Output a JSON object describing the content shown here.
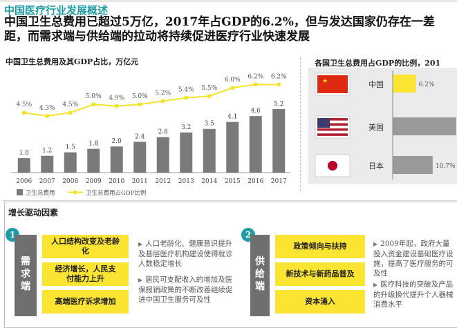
{
  "header": {
    "section_title": "中国医疗行业发展概述",
    "headline": "中国卫生总费用已超过5万亿，2017年占GDP的6.2%，但与发达国家仍存在一差距，而需求端与供给端的拉动将持续促进医疗行业快速发展"
  },
  "chart_data": {
    "type": "bar",
    "title": "中国卫生总费用及其GDP占比，万亿元",
    "categories": [
      "2006",
      "2007",
      "2008",
      "2009",
      "2010",
      "2011",
      "2012",
      "2013",
      "2014",
      "2015",
      "2016",
      "2017"
    ],
    "series": [
      {
        "name": "卫生总费用",
        "kind": "bar",
        "color": "#7a7a7a",
        "values": [
          1.0,
          1.2,
          1.5,
          1.8,
          2.0,
          2.4,
          2.8,
          3.2,
          3.5,
          4.1,
          4.6,
          5.2
        ]
      },
      {
        "name": "卫生总费用占GDP比例",
        "kind": "line",
        "color": "#f5e32a",
        "values": [
          4.5,
          4.3,
          4.5,
          5.0,
          4.9,
          5.0,
          5.2,
          5.4,
          5.5,
          6.0,
          6.2,
          6.2
        ],
        "labels": [
          "4.5%",
          "4.3%",
          "4.5%",
          "5.0%",
          "4.9%",
          "5.0%",
          "5.2%",
          "5.4%",
          "5.5%",
          "6.0%",
          "6.2%",
          "6.2%"
        ]
      }
    ],
    "ylim": [
      0,
      6
    ]
  },
  "comparison": {
    "title": "各国卫生总费用占GDP的比例，201",
    "countries": [
      {
        "name": "中国",
        "flag": "china-flag",
        "value": 6.2,
        "label": "6.2%",
        "color": "#fbe432"
      },
      {
        "name": "美国",
        "flag": "usa-flag",
        "value": 17.0,
        "label": "",
        "color": "#9a9a9a"
      },
      {
        "name": "日本",
        "flag": "japan-flag",
        "value": 10.7,
        "label": "10.7%",
        "color": "#9a9a9a"
      }
    ],
    "max": 17.2
  },
  "drivers": {
    "title": "增长驱动因素",
    "demand": {
      "number": "1",
      "label": "需求端",
      "items": [
        "人口结构改变及老龄化",
        "经济增长，人民支付能力上升",
        "高端医疗诉求增加"
      ],
      "descs": [
        "人口老龄化、健康意识提升及基层医疗机构建设使得就诊人数稳定增长",
        "居民可支配收入的增加及医保报销政策的不断改善继续促进中国卫生服务可及性"
      ]
    },
    "supply": {
      "number": "2",
      "label": "供给端",
      "items": [
        "政策倾向与扶持",
        "新技术与新药品普及",
        "资本涌入"
      ],
      "descs": [
        "2009年起，政府大量投入资金建设基础医疗设施，提高了医疗服务的可及性",
        "医疗科技的突破及产品的升级换代提升个人器械消费水平"
      ]
    }
  }
}
